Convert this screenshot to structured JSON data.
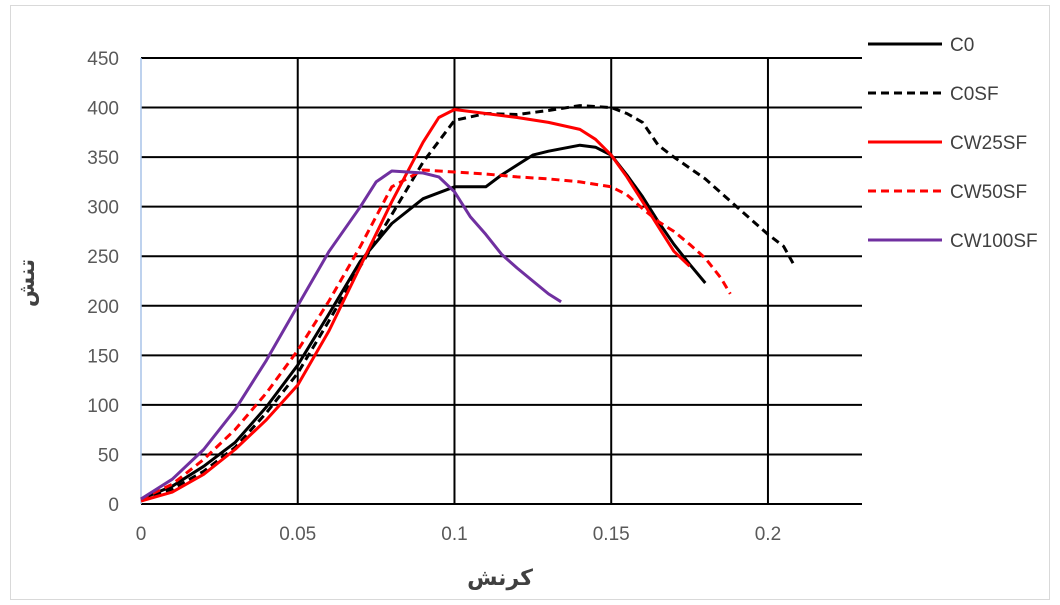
{
  "chart_data": {
    "type": "line",
    "title": "",
    "xlabel": "کرنش",
    "ylabel": "تنش",
    "xlim": [
      0,
      0.23
    ],
    "ylim": [
      0,
      450
    ],
    "grid": true,
    "legend_position": "right",
    "x_ticks": [
      0,
      0.05,
      0.1,
      0.15,
      0.2
    ],
    "x_tick_labels": [
      "0",
      "0.05",
      "0.1",
      "0.15",
      "0.2"
    ],
    "y_ticks": [
      0,
      50,
      100,
      150,
      200,
      250,
      300,
      350,
      400,
      450
    ],
    "y_tick_labels": [
      "0",
      "50",
      "100",
      "150",
      "200",
      "250",
      "300",
      "350",
      "400",
      "450"
    ],
    "series": [
      {
        "name": "C0",
        "color": "#000000",
        "dash": "solid",
        "x": [
          0,
          0.01,
          0.02,
          0.03,
          0.04,
          0.05,
          0.06,
          0.07,
          0.08,
          0.09,
          0.1,
          0.105,
          0.11,
          0.115,
          0.12,
          0.125,
          0.13,
          0.14,
          0.145,
          0.15,
          0.155,
          0.16,
          0.165,
          0.17,
          0.175,
          0.18
        ],
        "y": [
          5,
          18,
          38,
          62,
          98,
          140,
          192,
          245,
          283,
          308,
          320,
          320,
          320,
          332,
          342,
          352,
          356,
          362,
          360,
          352,
          332,
          310,
          285,
          262,
          242,
          223
        ]
      },
      {
        "name": "C0SF",
        "color": "#000000",
        "dash": "dashed",
        "x": [
          0,
          0.01,
          0.02,
          0.03,
          0.04,
          0.05,
          0.06,
          0.07,
          0.08,
          0.09,
          0.1,
          0.11,
          0.12,
          0.13,
          0.14,
          0.15,
          0.155,
          0.16,
          0.165,
          0.17,
          0.18,
          0.19,
          0.2,
          0.205,
          0.208
        ],
        "y": [
          5,
          15,
          33,
          57,
          92,
          132,
          185,
          240,
          292,
          345,
          387,
          394,
          393,
          397,
          402,
          400,
          394,
          385,
          362,
          350,
          328,
          300,
          272,
          260,
          243
        ]
      },
      {
        "name": "CW25SF",
        "color": "#ff0000",
        "dash": "solid",
        "x": [
          0,
          0.01,
          0.02,
          0.03,
          0.04,
          0.05,
          0.06,
          0.07,
          0.08,
          0.09,
          0.095,
          0.1,
          0.11,
          0.12,
          0.13,
          0.14,
          0.145,
          0.15,
          0.155,
          0.16,
          0.165,
          0.17,
          0.175
        ],
        "y": [
          3,
          12,
          30,
          55,
          85,
          120,
          175,
          240,
          305,
          365,
          390,
          398,
          394,
          390,
          385,
          378,
          368,
          352,
          330,
          305,
          280,
          255,
          240
        ]
      },
      {
        "name": "CW50SF",
        "color": "#ff0000",
        "dash": "dashed",
        "x": [
          0,
          0.01,
          0.02,
          0.03,
          0.04,
          0.05,
          0.06,
          0.07,
          0.08,
          0.09,
          0.1,
          0.11,
          0.12,
          0.13,
          0.14,
          0.15,
          0.155,
          0.16,
          0.165,
          0.17,
          0.175,
          0.18,
          0.185,
          0.188
        ],
        "y": [
          5,
          20,
          45,
          75,
          112,
          155,
          205,
          260,
          320,
          337,
          335,
          333,
          330,
          328,
          325,
          320,
          312,
          298,
          285,
          275,
          262,
          248,
          228,
          212
        ]
      },
      {
        "name": "CW100SF",
        "color": "#7030a0",
        "dash": "solid",
        "x": [
          0,
          0.01,
          0.02,
          0.03,
          0.04,
          0.05,
          0.06,
          0.07,
          0.075,
          0.08,
          0.09,
          0.095,
          0.1,
          0.105,
          0.11,
          0.115,
          0.12,
          0.125,
          0.13,
          0.134
        ],
        "y": [
          5,
          25,
          55,
          95,
          145,
          200,
          255,
          300,
          325,
          336,
          334,
          330,
          315,
          290,
          272,
          252,
          238,
          225,
          212,
          204
        ]
      }
    ]
  }
}
